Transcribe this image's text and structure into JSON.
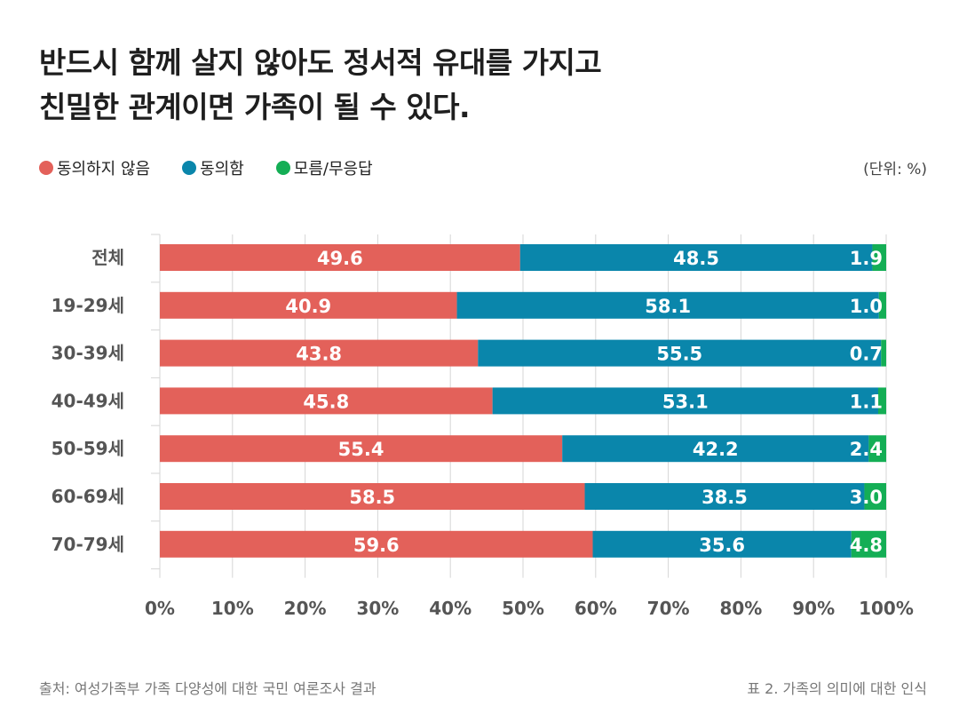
{
  "title": {
    "line1": "반드시 함께 살지 않아도 정서적 유대를 가지고",
    "line2": "친밀한 관계이면 가족이 될 수 있다."
  },
  "unit_label": "(단위: %)",
  "footer": {
    "source": "출처: 여성가족부 가족 다양성에 대한 국민 여론조사 결과",
    "caption": "표 2. 가족의 의미에 대한 인식"
  },
  "colors": {
    "disagree": "#e3615a",
    "agree": "#0a86ab",
    "unknown": "#14ae55",
    "grid": "#d6d6d6",
    "axis_text": "#555555"
  },
  "chart_data": {
    "type": "bar",
    "orientation": "horizontal",
    "stacked": true,
    "categories": [
      "전체",
      "19-29세",
      "30-39세",
      "40-49세",
      "50-59세",
      "60-69세",
      "70-79세"
    ],
    "series": [
      {
        "name": "동의하지 않음",
        "key": "disagree",
        "values": [
          49.6,
          40.9,
          43.8,
          45.8,
          55.4,
          58.5,
          59.6
        ]
      },
      {
        "name": "동의함",
        "key": "agree",
        "values": [
          48.5,
          58.1,
          55.5,
          53.1,
          42.2,
          38.5,
          35.6
        ]
      },
      {
        "name": "모름/무응답",
        "key": "unknown",
        "values": [
          1.9,
          1.0,
          0.7,
          1.1,
          2.4,
          3.0,
          4.8
        ]
      }
    ],
    "value_labels": [
      [
        "49.6",
        "40.9",
        "43.8",
        "45.8",
        "55.4",
        "58.5",
        "59.6"
      ],
      [
        "48.5",
        "58.1",
        "55.5",
        "53.1",
        "42.2",
        "38.5",
        "35.6"
      ],
      [
        "1.9",
        "1.0",
        "0.7",
        "1.1",
        "2.4",
        "3.0",
        "4.8"
      ]
    ],
    "xlim": [
      0,
      100
    ],
    "xticks": [
      "0%",
      "10%",
      "20%",
      "30%",
      "40%",
      "50%",
      "60%",
      "70%",
      "80%",
      "90%",
      "100%"
    ],
    "grid": true,
    "legend_position": "top-left"
  }
}
